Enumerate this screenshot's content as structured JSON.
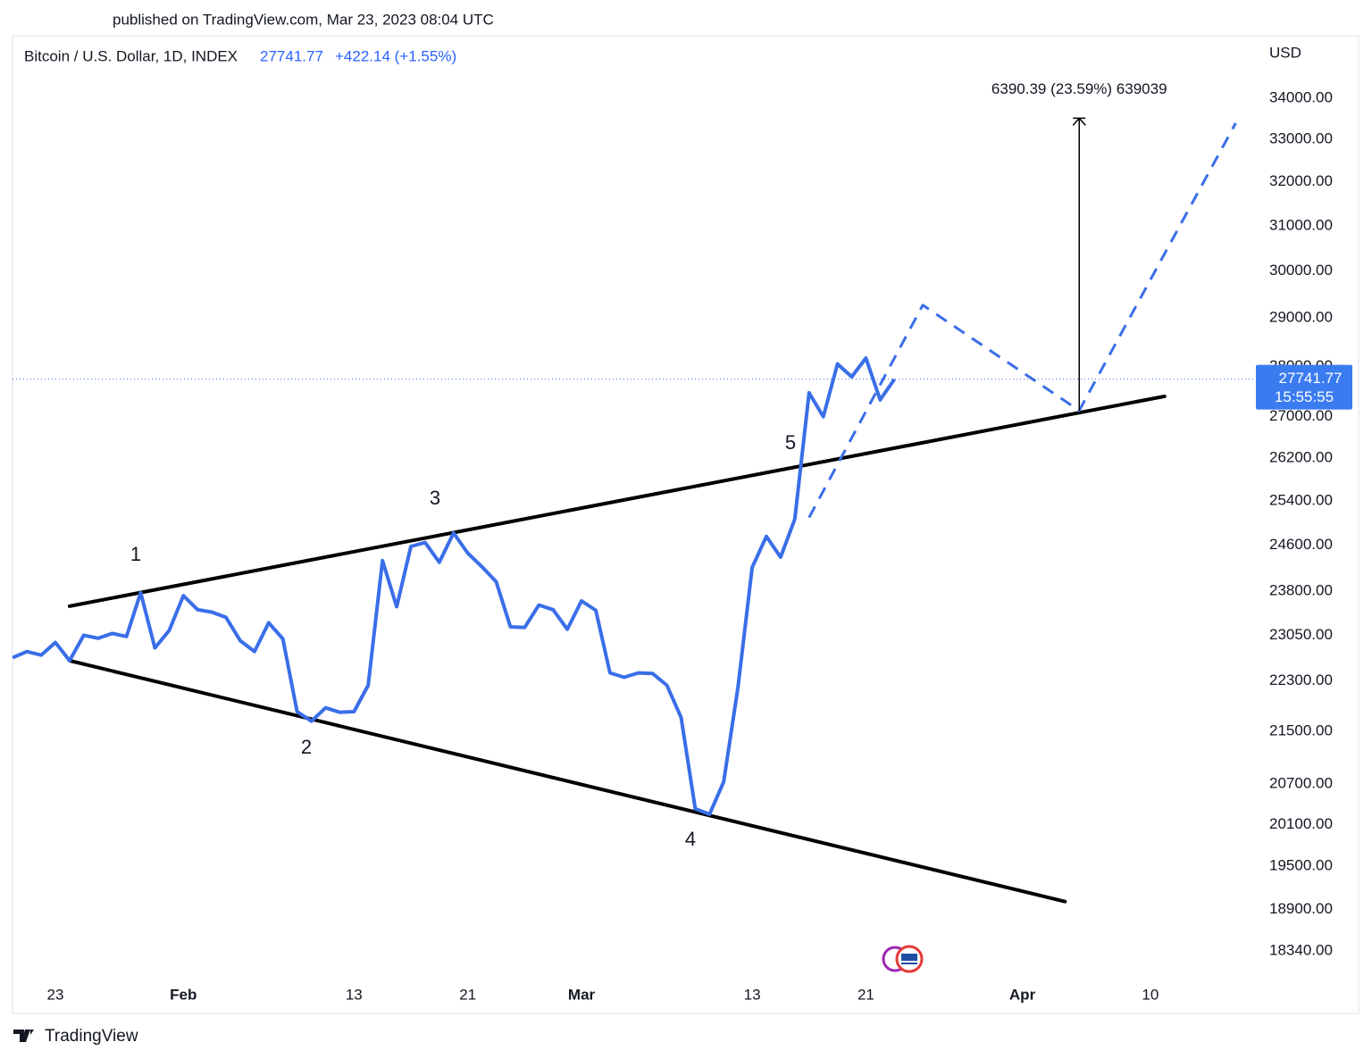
{
  "header": {
    "published": "published on TradingView.com, Mar 23, 2023 08:04 UTC",
    "brand": "TradingView"
  },
  "chart_data": {
    "type": "line",
    "log": true,
    "currency": "USD",
    "change": "+422.14 (+1.55%)",
    "countdown": "15:55:55",
    "ylim": [
      17990,
      35570
    ],
    "yticks": [
      {
        "value": 34000,
        "label": "34000.00"
      },
      {
        "value": 33000,
        "label": "33000.00"
      },
      {
        "value": 32000,
        "label": "32000.00"
      },
      {
        "value": 31000,
        "label": "31000.00"
      },
      {
        "value": 30000,
        "label": "30000.00"
      },
      {
        "value": 29000,
        "label": "29000.00"
      },
      {
        "value": 28000,
        "label": "28000.00"
      },
      {
        "value": 27000,
        "label": "27000.00"
      },
      {
        "value": 26200,
        "label": "26200.00"
      },
      {
        "value": 25400,
        "label": "25400.00"
      },
      {
        "value": 24600,
        "label": "24600.00"
      },
      {
        "value": 23800,
        "label": "23800.00"
      },
      {
        "value": 23050,
        "label": "23050.00"
      },
      {
        "value": 22300,
        "label": "22300.00"
      },
      {
        "value": 21500,
        "label": "21500.00"
      },
      {
        "value": 20700,
        "label": "20700.00"
      },
      {
        "value": 20100,
        "label": "20100.00"
      },
      {
        "value": 19500,
        "label": "19500.00"
      },
      {
        "value": 18900,
        "label": "18900.00"
      },
      {
        "value": 18340,
        "label": "18340.00"
      }
    ],
    "xticks": [
      {
        "value": "01-23",
        "label": "23"
      },
      {
        "value": "02-01",
        "label": "Feb"
      },
      {
        "value": "02-13",
        "label": "13"
      },
      {
        "value": "02-21",
        "label": "21"
      },
      {
        "value": "03-01",
        "label": "Mar"
      },
      {
        "value": "03-13",
        "label": "13"
      },
      {
        "value": "03-21",
        "label": "21"
      },
      {
        "value": "04-01",
        "label": "Apr"
      },
      {
        "value": "04-10",
        "label": "10"
      }
    ],
    "series": [
      {
        "name": "Bitcoin / U.S. Dollar, 1D, INDEX",
        "color": "#3a6ee8",
        "style": "solid",
        "x": [
          "01-20",
          "01-21",
          "01-22",
          "01-23",
          "01-24",
          "01-25",
          "01-26",
          "01-27",
          "01-28",
          "01-29",
          "01-30",
          "01-31",
          "02-01",
          "02-02",
          "02-03",
          "02-04",
          "02-05",
          "02-06",
          "02-07",
          "02-08",
          "02-09",
          "02-10",
          "02-11",
          "02-12",
          "02-13",
          "02-14",
          "02-15",
          "02-16",
          "02-17",
          "02-18",
          "02-19",
          "02-20",
          "02-21",
          "02-22",
          "02-23",
          "02-24",
          "02-25",
          "02-26",
          "02-27",
          "02-28",
          "03-01",
          "03-02",
          "03-03",
          "03-04",
          "03-05",
          "03-06",
          "03-07",
          "03-08",
          "03-09",
          "03-10",
          "03-11",
          "03-12",
          "03-13",
          "03-14",
          "03-15",
          "03-16",
          "03-17",
          "03-18",
          "03-19",
          "03-20",
          "03-21",
          "03-22",
          "03-23"
        ],
        "values": [
          22680,
          22780,
          22720,
          22930,
          22630,
          23050,
          23000,
          23080,
          23030,
          23770,
          22840,
          23130,
          23720,
          23480,
          23440,
          23350,
          22960,
          22780,
          23260,
          22990,
          21810,
          21660,
          21870,
          21800,
          21810,
          22230,
          24330,
          23530,
          24580,
          24650,
          24300,
          24820,
          24460,
          24220,
          23960,
          23190,
          23180,
          23560,
          23480,
          23150,
          23630,
          23470,
          22430,
          22360,
          22430,
          22420,
          22230,
          21720,
          20330,
          20250,
          20730,
          22200,
          24210,
          24760,
          24390,
          25070,
          27470,
          27000,
          28050,
          27790,
          28170,
          27330,
          27741.77
        ]
      },
      {
        "color": "#3a6ee8",
        "style": "dashed",
        "x": [
          "03-17",
          "03-25",
          "04-05",
          "04-16"
        ],
        "values": [
          25100,
          29270,
          27120,
          33390
        ]
      }
    ],
    "trendlines": [
      {
        "color": "#000000",
        "x": [
          "01-24",
          "04-11"
        ],
        "values": [
          23540,
          27400
        ]
      },
      {
        "color": "#000000",
        "x": [
          "01-24",
          "04-04"
        ],
        "values": [
          22630,
          19010
        ]
      }
    ],
    "measure": {
      "x": "04-05",
      "values": [
        27120,
        33510
      ],
      "label": "6390.39 (23.59%) 639039"
    },
    "wave_labels": [
      "1",
      "2",
      "3",
      "4",
      "5"
    ]
  }
}
